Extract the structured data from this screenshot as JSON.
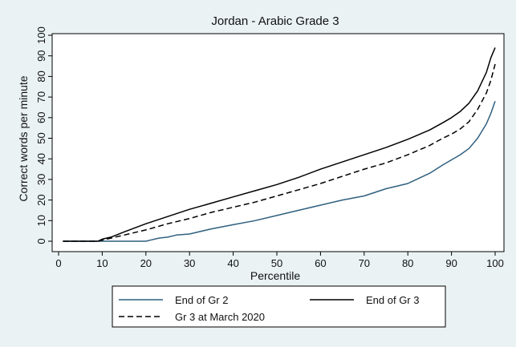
{
  "chart_data": {
    "type": "line",
    "title": "Jordan - Arabic Grade 3",
    "xlabel": "Percentile",
    "ylabel": "Correct words per minute",
    "xlim": [
      0,
      100
    ],
    "ylim": [
      0,
      100
    ],
    "xticks": [
      0,
      10,
      20,
      30,
      40,
      50,
      60,
      70,
      80,
      90,
      100
    ],
    "yticks": [
      0,
      10,
      20,
      30,
      40,
      50,
      60,
      70,
      80,
      90,
      100
    ],
    "grid": false,
    "legend_position": "bottom",
    "series": [
      {
        "name": "End of Gr 2",
        "color": "#2f5f7f",
        "dash": "solid",
        "x": [
          1,
          10,
          20,
          21,
          23,
          25,
          27,
          30,
          35,
          40,
          45,
          50,
          55,
          60,
          65,
          70,
          75,
          80,
          85,
          88,
          90,
          92,
          94,
          96,
          98,
          99,
          100
        ],
        "y": [
          0,
          0,
          0,
          0.5,
          1.5,
          2,
          3,
          3.5,
          6,
          8,
          10,
          12.5,
          15,
          17.5,
          20,
          22,
          25.5,
          28,
          33,
          37,
          39.5,
          42,
          45,
          50,
          57,
          62,
          68
        ]
      },
      {
        "name": "End of Gr 3",
        "color": "#000000",
        "dash": "solid",
        "x": [
          1,
          9,
          10,
          12,
          15,
          20,
          25,
          30,
          35,
          40,
          45,
          50,
          55,
          60,
          65,
          70,
          75,
          80,
          85,
          88,
          90,
          92,
          94,
          96,
          98,
          99,
          100
        ],
        "y": [
          0,
          0,
          1,
          2,
          4.5,
          8.5,
          12,
          15.5,
          18.5,
          21.5,
          24.5,
          27.5,
          31,
          35,
          38.5,
          42,
          45.5,
          49.5,
          54,
          57.5,
          60,
          63,
          67,
          73,
          82,
          89,
          94
        ]
      },
      {
        "name": "Gr 3 at March 2020",
        "color": "#000000",
        "dash": "dashed",
        "x": [
          1,
          9,
          10,
          12,
          15,
          20,
          25,
          30,
          35,
          40,
          45,
          50,
          55,
          60,
          65,
          70,
          75,
          80,
          85,
          88,
          90,
          92,
          94,
          96,
          98,
          99,
          100
        ],
        "y": [
          0,
          0,
          0.5,
          1.5,
          3,
          5.5,
          8.5,
          11,
          14,
          16.5,
          19,
          22,
          25,
          28,
          31.5,
          35,
          38,
          42,
          46.5,
          50,
          52,
          54.5,
          58,
          64,
          72,
          78,
          86
        ]
      }
    ]
  }
}
